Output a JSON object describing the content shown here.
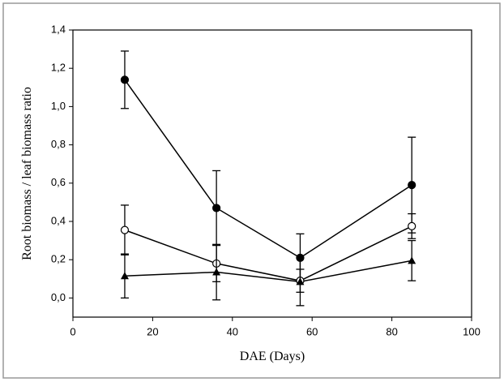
{
  "chart_data": {
    "type": "line",
    "x_label": "DAE (Days)",
    "y_label": "Root biomass / leaf biomass ratio",
    "x": [
      13,
      36,
      57,
      85
    ],
    "series": [
      {
        "color": "#000000",
        "marker": "circle-filled",
        "values": [
          1.14,
          0.47,
          0.21,
          0.59
        ],
        "errors": [
          0.15,
          0.195,
          0.125,
          0.25
        ]
      },
      {
        "color": "#000000",
        "marker": "circle-open",
        "values": [
          0.355,
          0.18,
          0.09,
          0.375
        ],
        "errors": [
          0.13,
          0.095,
          0.06,
          0.065
        ]
      },
      {
        "color": "#000000",
        "marker": "triangle",
        "values": [
          0.115,
          0.135,
          0.085,
          0.195
        ],
        "errors": [
          0.115,
          0.145,
          0.125,
          0.105
        ]
      }
    ],
    "xlim": [
      0,
      100
    ],
    "xticks": [
      0,
      20,
      40,
      60,
      80,
      100
    ],
    "ylim": [
      -0.1,
      1.4
    ],
    "yticks": [
      {
        "value": 0,
        "label": "0,0"
      },
      {
        "value": 0.2,
        "label": "0,2"
      },
      {
        "value": 0.4,
        "label": "0,4"
      },
      {
        "value": 0.6,
        "label": "0,6"
      },
      {
        "value": 0.8,
        "label": "0,8"
      },
      {
        "value": 1.0,
        "label": "1,0"
      },
      {
        "value": 1.2,
        "label": "1,2"
      },
      {
        "value": 1.4,
        "label": "1,4"
      }
    ],
    "grid": false
  }
}
